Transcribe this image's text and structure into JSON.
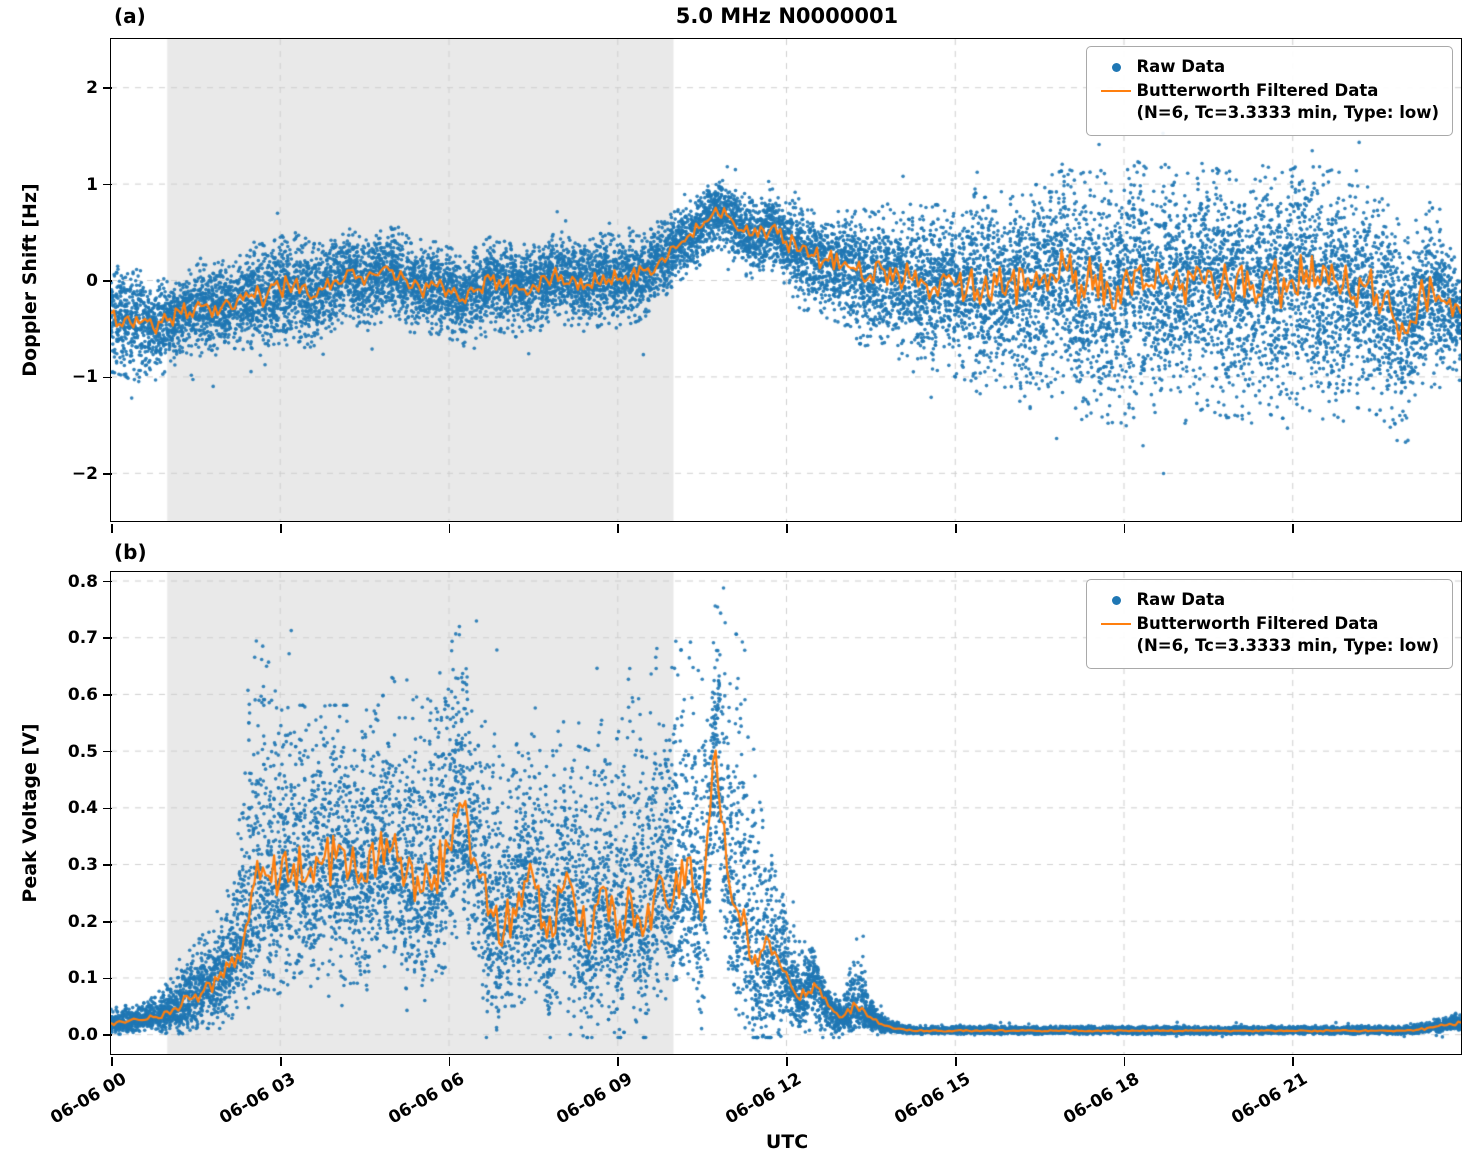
{
  "figure": {
    "title": "5.0 MHz N0000001",
    "xlabel": "UTC",
    "colors": {
      "raw": "#1f77b4",
      "filtered": "#ff7f0e",
      "shade": "#e9e9e9",
      "grid": "#cfcfcf"
    },
    "legend": {
      "raw_label": "Raw Data",
      "filtered_label": "Butterworth Filtered Data",
      "filtered_sublabel": "(N=6, Tc=3.3333 min, Type: low)",
      "position": "upper right"
    }
  },
  "chart_data": [
    {
      "type": "scatter",
      "panel": "(a)",
      "title": "5.0 MHz N0000001",
      "ylabel": "Doppler Shift [Hz]",
      "ylim": [
        -2.5,
        2.5
      ],
      "yticks": [
        -2,
        -1,
        0,
        1,
        2
      ],
      "yticklabels": [
        "−2",
        "−1",
        "0",
        "1",
        "2"
      ],
      "xlim_hours": [
        0,
        24
      ],
      "xticks_hours": [
        0,
        3,
        6,
        9,
        12,
        15,
        18,
        21
      ],
      "xticklabels": [
        "06-06 00",
        "06-06 03",
        "06-06 06",
        "06-06 09",
        "06-06 12",
        "06-06 15",
        "06-06 18",
        "06-06 21"
      ],
      "shaded_region_hours": [
        1,
        10
      ],
      "grid": true,
      "legend_position": "upper right",
      "series": [
        {
          "name": "Raw Data",
          "type": "scatter",
          "envelope": {
            "x_start": 0,
            "x_step": 0.25,
            "spread_up": [
              0.55,
              0.55,
              0.55,
              0.55,
              0.45,
              0.45,
              0.45,
              0.45,
              0.45,
              0.45,
              0.55,
              0.55,
              0.55,
              0.55,
              0.55,
              0.45,
              0.45,
              0.45,
              0.45,
              0.45,
              0.45,
              0.45,
              0.45,
              0.45,
              0.45,
              0.45,
              0.45,
              0.45,
              0.45,
              0.45,
              0.45,
              0.45,
              0.45,
              0.45,
              0.45,
              0.45,
              0.45,
              0.45,
              0.45,
              0.4,
              0.35,
              0.35,
              0.35,
              0.35,
              0.35,
              0.4,
              0.4,
              0.4,
              0.4,
              0.55,
              0.55,
              0.55,
              0.55,
              0.65,
              0.65,
              0.65,
              0.65,
              0.8,
              0.8,
              0.8,
              0.8,
              0.95,
              0.95,
              0.95,
              0.95,
              1.05,
              1.05,
              1.05,
              1.05,
              1.15,
              1.15,
              1.15,
              1.15,
              1.15,
              1.15,
              1.15,
              1.15,
              1.15,
              1.15,
              1.15,
              1.15,
              1.15,
              1.15,
              1.15,
              1.15,
              1.15,
              1.15,
              1.15,
              1.15,
              1.05,
              1.05,
              1.05,
              1.05,
              0.85,
              0.85,
              0.6,
              0.6
            ],
            "spread_down": [
              0.6,
              0.6,
              0.6,
              0.6,
              0.5,
              0.5,
              0.5,
              0.5,
              0.5,
              0.5,
              0.6,
              0.6,
              0.6,
              0.6,
              0.6,
              0.5,
              0.5,
              0.5,
              0.5,
              0.5,
              0.5,
              0.5,
              0.5,
              0.5,
              0.5,
              0.5,
              0.5,
              0.5,
              0.5,
              0.5,
              0.5,
              0.5,
              0.5,
              0.5,
              0.5,
              0.5,
              0.5,
              0.5,
              0.5,
              0.45,
              0.4,
              0.4,
              0.4,
              0.4,
              0.4,
              0.45,
              0.45,
              0.45,
              0.45,
              0.6,
              0.6,
              0.6,
              0.6,
              0.75,
              0.75,
              0.75,
              0.75,
              0.95,
              0.95,
              0.95,
              0.95,
              1.1,
              1.1,
              1.1,
              1.1,
              1.25,
              1.25,
              1.25,
              1.25,
              1.4,
              1.4,
              1.4,
              1.4,
              1.4,
              1.4,
              1.4,
              1.4,
              1.4,
              1.4,
              1.4,
              1.4,
              1.4,
              1.4,
              1.4,
              1.4,
              1.4,
              1.4,
              1.4,
              1.4,
              1.25,
              1.25,
              1.25,
              1.25,
              1.0,
              1.0,
              0.7,
              0.7
            ]
          }
        },
        {
          "name": "Butterworth Filtered Data (N=6, Tc=3.3333 min, Type: low)",
          "type": "line",
          "x_start": 0,
          "x_step": 0.25,
          "values": [
            -0.35,
            -0.4,
            -0.45,
            -0.5,
            -0.42,
            -0.35,
            -0.28,
            -0.3,
            -0.25,
            -0.2,
            -0.15,
            -0.2,
            -0.1,
            -0.05,
            -0.15,
            -0.1,
            0.0,
            0.1,
            -0.05,
            0.05,
            0.1,
            0.0,
            -0.1,
            -0.05,
            -0.1,
            -0.2,
            -0.1,
            0.0,
            -0.05,
            -0.1,
            -0.05,
            0.0,
            0.05,
            0.0,
            -0.05,
            0.05,
            0.0,
            0.05,
            0.1,
            0.2,
            0.35,
            0.45,
            0.55,
            0.75,
            0.65,
            0.5,
            0.45,
            0.55,
            0.4,
            0.3,
            0.25,
            0.2,
            0.15,
            0.1,
            0.05,
            0.1,
            0.05,
            0.0,
            -0.05,
            0.0,
            -0.05,
            0.0,
            -0.1,
            -0.05,
            0.0,
            -0.1,
            -0.05,
            0.05,
            0.1,
            -0.05,
            0.05,
            -0.1,
            0.0,
            0.1,
            -0.05,
            0.05,
            -0.1,
            0.0,
            0.1,
            -0.05,
            0.0,
            -0.1,
            0.05,
            -0.05,
            0.0,
            0.1,
            -0.05,
            0.0,
            -0.1,
            -0.05,
            -0.15,
            -0.3,
            -0.55,
            -0.2,
            -0.1,
            -0.25,
            -0.35
          ]
        }
      ]
    },
    {
      "type": "scatter",
      "panel": "(b)",
      "ylabel": "Peak Voltage [V]",
      "ylim": [
        -0.035,
        0.815
      ],
      "yticks": [
        0.0,
        0.1,
        0.2,
        0.3,
        0.4,
        0.5,
        0.6,
        0.7,
        0.8
      ],
      "yticklabels": [
        "0.0",
        "0.1",
        "0.2",
        "0.3",
        "0.4",
        "0.5",
        "0.6",
        "0.7",
        "0.8"
      ],
      "xlim_hours": [
        0,
        24
      ],
      "xticks_hours": [
        0,
        3,
        6,
        9,
        12,
        15,
        18,
        21
      ],
      "xticklabels": [
        "06-06 00",
        "06-06 03",
        "06-06 06",
        "06-06 09",
        "06-06 12",
        "06-06 15",
        "06-06 18",
        "06-06 21"
      ],
      "shaded_region_hours": [
        1,
        10
      ],
      "grid": true,
      "legend_position": "upper right",
      "series": [
        {
          "name": "Raw Data",
          "type": "scatter",
          "envelope": {
            "x_start": 0,
            "x_step": 0.25,
            "spread_up": [
              0.03,
              0.03,
              0.03,
              0.04,
              0.05,
              0.07,
              0.09,
              0.1,
              0.12,
              0.2,
              0.45,
              0.4,
              0.3,
              0.28,
              0.3,
              0.28,
              0.27,
              0.29,
              0.3,
              0.27,
              0.3,
              0.3,
              0.35,
              0.33,
              0.35,
              0.33,
              0.3,
              0.3,
              0.28,
              0.27,
              0.25,
              0.3,
              0.3,
              0.28,
              0.35,
              0.3,
              0.35,
              0.42,
              0.4,
              0.42,
              0.4,
              0.4,
              0.42,
              0.26,
              0.45,
              0.48,
              0.3,
              0.2,
              0.12,
              0.1,
              0.06,
              0.03,
              0.03,
              0.12,
              0.04,
              0.015,
              0.01,
              0.008,
              0.008,
              0.008,
              0.008,
              0.008,
              0.008,
              0.008,
              0.008,
              0.008,
              0.008,
              0.008,
              0.008,
              0.008,
              0.008,
              0.008,
              0.008,
              0.008,
              0.008,
              0.008,
              0.008,
              0.008,
              0.008,
              0.008,
              0.008,
              0.008,
              0.008,
              0.008,
              0.008,
              0.008,
              0.008,
              0.008,
              0.008,
              0.008,
              0.008,
              0.008,
              0.008,
              0.01,
              0.012,
              0.015,
              0.02
            ],
            "spread_down": [
              0.02,
              0.02,
              0.02,
              0.02,
              0.04,
              0.05,
              0.06,
              0.08,
              0.09,
              0.1,
              0.18,
              0.2,
              0.2,
              0.2,
              0.2,
              0.2,
              0.2,
              0.2,
              0.2,
              0.2,
              0.2,
              0.2,
              0.2,
              0.2,
              0.2,
              0.2,
              0.2,
              0.2,
              0.2,
              0.2,
              0.2,
              0.2,
              0.2,
              0.2,
              0.2,
              0.2,
              0.2,
              0.2,
              0.2,
              0.2,
              0.2,
              0.2,
              0.2,
              0.2,
              0.2,
              0.2,
              0.2,
              0.2,
              0.1,
              0.06,
              0.08,
              0.05,
              0.03,
              0.05,
              0.03,
              0.012,
              0.008,
              0.006,
              0.006,
              0.006,
              0.006,
              0.006,
              0.006,
              0.006,
              0.006,
              0.006,
              0.006,
              0.006,
              0.006,
              0.006,
              0.006,
              0.006,
              0.006,
              0.006,
              0.006,
              0.006,
              0.006,
              0.006,
              0.006,
              0.006,
              0.006,
              0.006,
              0.006,
              0.006,
              0.006,
              0.006,
              0.006,
              0.006,
              0.006,
              0.006,
              0.006,
              0.006,
              0.006,
              0.007,
              0.01,
              0.012,
              0.015
            ]
          }
        },
        {
          "name": "Butterworth Filtered Data (N=6, Tc=3.3333 min, Type: low)",
          "type": "line",
          "x_start": 0,
          "x_step": 0.25,
          "values": [
            0.02,
            0.02,
            0.025,
            0.03,
            0.04,
            0.05,
            0.07,
            0.09,
            0.1,
            0.14,
            0.25,
            0.28,
            0.27,
            0.3,
            0.28,
            0.3,
            0.31,
            0.29,
            0.27,
            0.31,
            0.33,
            0.28,
            0.25,
            0.28,
            0.33,
            0.4,
            0.3,
            0.22,
            0.19,
            0.25,
            0.28,
            0.17,
            0.25,
            0.23,
            0.15,
            0.26,
            0.17,
            0.24,
            0.19,
            0.28,
            0.24,
            0.31,
            0.2,
            0.5,
            0.26,
            0.22,
            0.12,
            0.14,
            0.11,
            0.06,
            0.09,
            0.05,
            0.03,
            0.05,
            0.03,
            0.015,
            0.01,
            0.006,
            0.006,
            0.006,
            0.006,
            0.006,
            0.006,
            0.006,
            0.006,
            0.006,
            0.006,
            0.006,
            0.006,
            0.006,
            0.006,
            0.006,
            0.006,
            0.006,
            0.006,
            0.006,
            0.006,
            0.006,
            0.006,
            0.006,
            0.006,
            0.006,
            0.006,
            0.006,
            0.006,
            0.006,
            0.006,
            0.006,
            0.006,
            0.006,
            0.006,
            0.006,
            0.006,
            0.008,
            0.012,
            0.016,
            0.02
          ]
        }
      ]
    }
  ]
}
